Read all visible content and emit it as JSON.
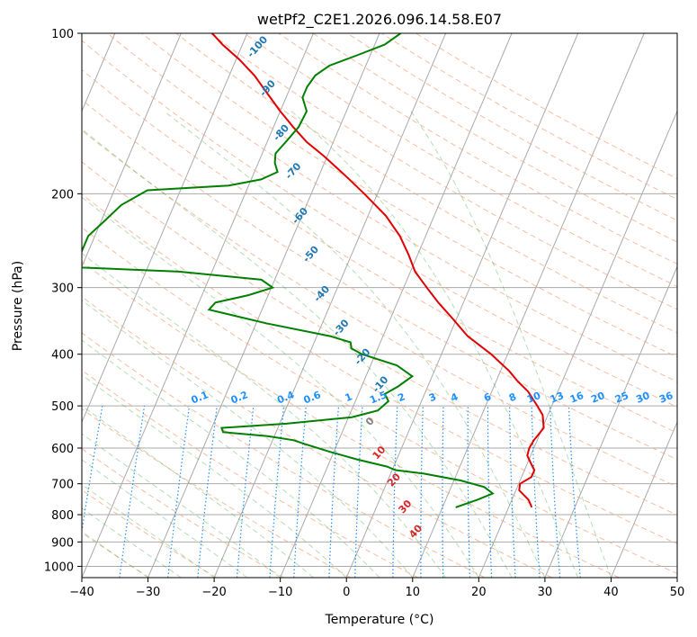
{
  "chart_data": {
    "type": "line",
    "title": "wetPf2_C2E1.2026.096.14.58.E07",
    "xlabel": "Temperature (°C)",
    "ylabel": "Pressure (hPa)",
    "xlim": [
      -40,
      50
    ],
    "ylim": [
      1050,
      100
    ],
    "yscale": "log",
    "x_ticks": [
      "−40",
      "−30",
      "−20",
      "−10",
      "0",
      "10",
      "20",
      "30",
      "40",
      "50"
    ],
    "x_tick_values": [
      -40,
      -30,
      -20,
      -10,
      0,
      10,
      20,
      30,
      40,
      50
    ],
    "y_ticks": [
      "100",
      "200",
      "300",
      "400",
      "500",
      "600",
      "700",
      "800",
      "900",
      "1000"
    ],
    "y_tick_values": [
      100,
      200,
      300,
      400,
      500,
      600,
      700,
      800,
      900,
      1000
    ],
    "grid": true,
    "skew": 35,
    "colors": {
      "temperature": "#e00000",
      "dewpoint": "#008000",
      "isotherm": "#aaaaaa",
      "dry_adiabat": "#f4a582",
      "moist_adiabat": "#2ca02c",
      "mixing_ratio": "#1e90ff",
      "wbt_label": "#1f77b4",
      "warm_label": "#d62728"
    },
    "series": [
      {
        "key": "temperature",
        "points": [
          {
            "p": 775,
            "t": 23.5
          },
          {
            "p": 750,
            "t": 22.5
          },
          {
            "p": 720,
            "t": 20.5
          },
          {
            "p": 700,
            "t": 20.2
          },
          {
            "p": 680,
            "t": 21.5
          },
          {
            "p": 660,
            "t": 21.5
          },
          {
            "p": 640,
            "t": 20.5
          },
          {
            "p": 620,
            "t": 19.5
          },
          {
            "p": 600,
            "t": 19.3
          },
          {
            "p": 580,
            "t": 19.5
          },
          {
            "p": 550,
            "t": 20.2
          },
          {
            "p": 520,
            "t": 19.2
          },
          {
            "p": 500,
            "t": 17.8
          },
          {
            "p": 470,
            "t": 15.5
          },
          {
            "p": 450,
            "t": 13.3
          },
          {
            "p": 430,
            "t": 11.3
          },
          {
            "p": 400,
            "t": 7.5
          },
          {
            "p": 370,
            "t": 2.8
          },
          {
            "p": 340,
            "t": -1.0
          },
          {
            "p": 320,
            "t": -3.8
          },
          {
            "p": 300,
            "t": -6.5
          },
          {
            "p": 280,
            "t": -9.3
          },
          {
            "p": 260,
            "t": -11.4
          },
          {
            "p": 240,
            "t": -13.9
          },
          {
            "p": 220,
            "t": -17.3
          },
          {
            "p": 200,
            "t": -22.0
          },
          {
            "p": 185,
            "t": -26.0
          },
          {
            "p": 170,
            "t": -30.5
          },
          {
            "p": 160,
            "t": -34.0
          },
          {
            "p": 150,
            "t": -37.0
          },
          {
            "p": 140,
            "t": -40.0
          },
          {
            "p": 130,
            "t": -43.0
          },
          {
            "p": 120,
            "t": -46.2
          },
          {
            "p": 112,
            "t": -49.5
          },
          {
            "p": 105,
            "t": -53.0
          },
          {
            "p": 100,
            "t": -55.3
          }
        ]
      },
      {
        "key": "dewpoint",
        "points": [
          {
            "p": 775,
            "t": 12.0
          },
          {
            "p": 750,
            "t": 14.8
          },
          {
            "p": 730,
            "t": 16.7
          },
          {
            "p": 710,
            "t": 15.0
          },
          {
            "p": 690,
            "t": 11.0
          },
          {
            "p": 670,
            "t": 5.0
          },
          {
            "p": 660,
            "t": 0.5
          },
          {
            "p": 650,
            "t": -1.0
          },
          {
            "p": 630,
            "t": -6.0
          },
          {
            "p": 610,
            "t": -10.5
          },
          {
            "p": 590,
            "t": -14.8
          },
          {
            "p": 580,
            "t": -16.8
          },
          {
            "p": 570,
            "t": -21.0
          },
          {
            "p": 560,
            "t": -28.0
          },
          {
            "p": 550,
            "t": -28.5
          },
          {
            "p": 540,
            "t": -19.0
          },
          {
            "p": 525,
            "t": -9.5
          },
          {
            "p": 510,
            "t": -6.0
          },
          {
            "p": 490,
            "t": -5.0
          },
          {
            "p": 475,
            "t": -6.0
          },
          {
            "p": 460,
            "t": -4.5
          },
          {
            "p": 440,
            "t": -3.0
          },
          {
            "p": 420,
            "t": -6.0
          },
          {
            "p": 400,
            "t": -12.0
          },
          {
            "p": 390,
            "t": -14.0
          },
          {
            "p": 380,
            "t": -14.5
          },
          {
            "p": 370,
            "t": -18.0
          },
          {
            "p": 350,
            "t": -28.5
          },
          {
            "p": 330,
            "t": -38.0
          },
          {
            "p": 320,
            "t": -37.5
          },
          {
            "p": 310,
            "t": -33.0
          },
          {
            "p": 300,
            "t": -29.8
          },
          {
            "p": 290,
            "t": -32.0
          },
          {
            "p": 280,
            "t": -45.0
          },
          {
            "p": 275,
            "t": -60.0
          },
          {
            "p": 260,
            "t": -61.0
          },
          {
            "p": 240,
            "t": -61.0
          },
          {
            "p": 225,
            "t": -59.5
          },
          {
            "p": 210,
            "t": -58.0
          },
          {
            "p": 197,
            "t": -55.0
          },
          {
            "p": 193,
            "t": -43.0
          },
          {
            "p": 188,
            "t": -38.5
          },
          {
            "p": 182,
            "t": -36.5
          },
          {
            "p": 175,
            "t": -37.5
          },
          {
            "p": 168,
            "t": -38.0
          },
          {
            "p": 160,
            "t": -37.2
          },
          {
            "p": 150,
            "t": -36.2
          },
          {
            "p": 140,
            "t": -36.0
          },
          {
            "p": 132,
            "t": -37.5
          },
          {
            "p": 126,
            "t": -37.5
          },
          {
            "p": 120,
            "t": -37.0
          },
          {
            "p": 115,
            "t": -35.5
          },
          {
            "p": 110,
            "t": -32.0
          },
          {
            "p": 105,
            "t": -28.5
          },
          {
            "p": 100,
            "t": -26.8
          }
        ]
      }
    ],
    "wetbulb_annotations": [
      {
        "text": "-100",
        "x": -47.1,
        "p": 107
      },
      {
        "text": "-90",
        "x": -42.9,
        "p": 128
      },
      {
        "text": "-80",
        "x": -38.0,
        "p": 155
      },
      {
        "text": "-70",
        "x": -33.7,
        "p": 183
      },
      {
        "text": "-60",
        "x": -29.8,
        "p": 222
      },
      {
        "text": "-50",
        "x": -25.7,
        "p": 262
      },
      {
        "text": "-40",
        "x": -21.5,
        "p": 311
      },
      {
        "text": "-30",
        "x": -16.4,
        "p": 360
      },
      {
        "text": "-20",
        "x": -11.3,
        "p": 408
      },
      {
        "text": "-10",
        "x": -6.8,
        "p": 460
      }
    ],
    "zero_annotation": {
      "text": "0",
      "x": -6.0,
      "p": 540
    },
    "warm_annotations": [
      {
        "text": "10",
        "x": -2.6,
        "p": 618
      },
      {
        "text": "20",
        "x": 1.4,
        "p": 695
      },
      {
        "text": "30",
        "x": 4.8,
        "p": 780
      },
      {
        "text": "40",
        "x": 8.0,
        "p": 868
      }
    ],
    "mixing_ratio_labels": [
      {
        "text": "0.1",
        "x": -22.0
      },
      {
        "text": "0.2",
        "x": -16.0
      },
      {
        "text": "0.4",
        "x": -9.0
      },
      {
        "text": "0.6",
        "x": -5.0
      },
      {
        "text": "1",
        "x": 0.5
      },
      {
        "text": "1.5",
        "x": 5.0
      },
      {
        "text": "2",
        "x": 8.5
      },
      {
        "text": "3",
        "x": 13.2
      },
      {
        "text": "4",
        "x": 16.5
      },
      {
        "text": "6",
        "x": 21.5
      },
      {
        "text": "8",
        "x": 25.3
      },
      {
        "text": "10",
        "x": 28.5
      },
      {
        "text": "13",
        "x": 32.0
      },
      {
        "text": "16",
        "x": 35.0
      },
      {
        "text": "20",
        "x": 38.2
      },
      {
        "text": "25",
        "x": 41.8
      },
      {
        "text": "30",
        "x": 45.0
      },
      {
        "text": "36",
        "x": 48.5
      }
    ]
  }
}
